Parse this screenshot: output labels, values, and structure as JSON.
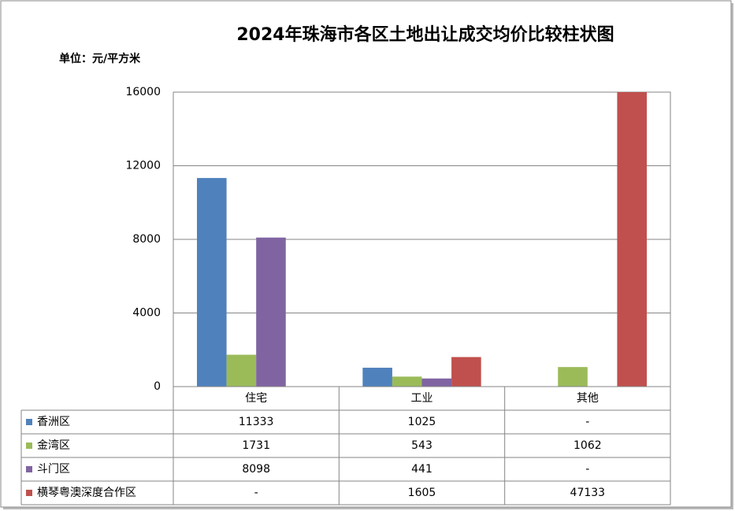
{
  "chart_data": {
    "type": "bar",
    "title": "2024年珠海市各区土地出让成交均价比较柱状图",
    "unit_label": "单位：元/平方米",
    "categories": [
      "住宅",
      "工业",
      "其他"
    ],
    "series": [
      {
        "name": "香洲区",
        "color": "#4f81bd",
        "values": [
          11333,
          1025,
          null
        ],
        "value_labels": [
          "11333",
          "1025",
          "-"
        ]
      },
      {
        "name": "金湾区",
        "color": "#9bbb59",
        "values": [
          1731,
          543,
          1062
        ],
        "value_labels": [
          "1731",
          "543",
          "1062"
        ]
      },
      {
        "name": "斗门区",
        "color": "#8064a2",
        "values": [
          8098,
          441,
          null
        ],
        "value_labels": [
          "8098",
          "441",
          "-"
        ]
      },
      {
        "name": "横琴粤澳深度合作区",
        "color": "#c0504d",
        "values": [
          null,
          1605,
          47133
        ],
        "value_labels": [
          "-",
          "1605",
          "47133"
        ]
      }
    ],
    "ylim": [
      0,
      16000
    ],
    "yticks": [
      0,
      4000,
      8000,
      12000,
      16000
    ],
    "grid": true,
    "legend": "table"
  }
}
